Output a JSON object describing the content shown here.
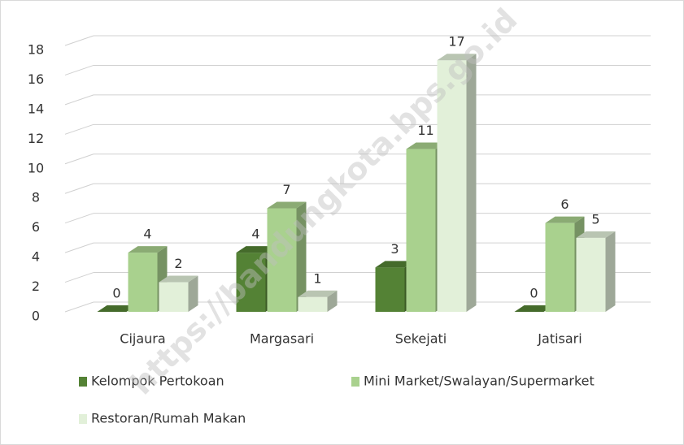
{
  "chart_data": {
    "type": "bar3d",
    "categories": [
      "Cijaura",
      "Margasari",
      "Sekejati",
      "Jatisari"
    ],
    "series": [
      {
        "name": "Kelompok Pertokoan",
        "color": "#548235",
        "values": [
          0,
          4,
          3,
          0
        ]
      },
      {
        "name": "Mini Market/Swalayan/Supermarket",
        "color": "#a9d18e",
        "values": [
          4,
          7,
          11,
          6
        ]
      },
      {
        "name": "Restoran/Rumah Makan",
        "color": "#e2f0d9",
        "values": [
          2,
          1,
          17,
          5
        ]
      }
    ],
    "ylim": [
      0,
      18
    ],
    "yticks": [
      0,
      2,
      4,
      6,
      8,
      10,
      12,
      14,
      16,
      18
    ],
    "grid": true,
    "legend": "bottom",
    "watermark": "https://bandungkota.bps.go.id"
  }
}
